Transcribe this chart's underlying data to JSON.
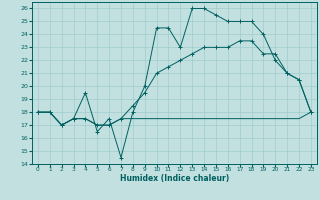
{
  "xlabel": "Humidex (Indice chaleur)",
  "xlim": [
    -0.5,
    23.5
  ],
  "ylim": [
    14,
    26.5
  ],
  "xticks": [
    0,
    1,
    2,
    3,
    4,
    5,
    6,
    7,
    8,
    9,
    10,
    11,
    12,
    13,
    14,
    15,
    16,
    17,
    18,
    19,
    20,
    21,
    22,
    23
  ],
  "yticks": [
    14,
    15,
    16,
    17,
    18,
    19,
    20,
    21,
    22,
    23,
    24,
    25,
    26
  ],
  "bg_color": "#c2e0e0",
  "line_color": "#006060",
  "line1_x": [
    0,
    1,
    2,
    3,
    4,
    5,
    6,
    7,
    8,
    9,
    10,
    11,
    12,
    13,
    14,
    15,
    16,
    17,
    18,
    19,
    20,
    21,
    22,
    23
  ],
  "line1_y": [
    18,
    18,
    17,
    17.5,
    19.5,
    16.5,
    17.5,
    14.5,
    18,
    20,
    24.5,
    24.5,
    23,
    26,
    26,
    25.5,
    25,
    25,
    25,
    24,
    22,
    21,
    20.5,
    18
  ],
  "line2_x": [
    0,
    1,
    2,
    3,
    4,
    5,
    6,
    7,
    8,
    9,
    10,
    11,
    12,
    13,
    14,
    15,
    16,
    17,
    18,
    19,
    20,
    21,
    22,
    23
  ],
  "line2_y": [
    18,
    18,
    17,
    17.5,
    17.5,
    17,
    17,
    17.5,
    17.5,
    17.5,
    17.5,
    17.5,
    17.5,
    17.5,
    17.5,
    17.5,
    17.5,
    17.5,
    17.5,
    17.5,
    17.5,
    17.5,
    17.5,
    18
  ],
  "line3_x": [
    0,
    1,
    2,
    3,
    4,
    5,
    6,
    7,
    8,
    9,
    10,
    11,
    12,
    13,
    14,
    15,
    16,
    17,
    18,
    19,
    20,
    21,
    22,
    23
  ],
  "line3_y": [
    18,
    18,
    17,
    17.5,
    17.5,
    17,
    17,
    17.5,
    18.5,
    19.5,
    21,
    21.5,
    22,
    22.5,
    23,
    23,
    23,
    23.5,
    23.5,
    22.5,
    22.5,
    21,
    20.5,
    18
  ]
}
